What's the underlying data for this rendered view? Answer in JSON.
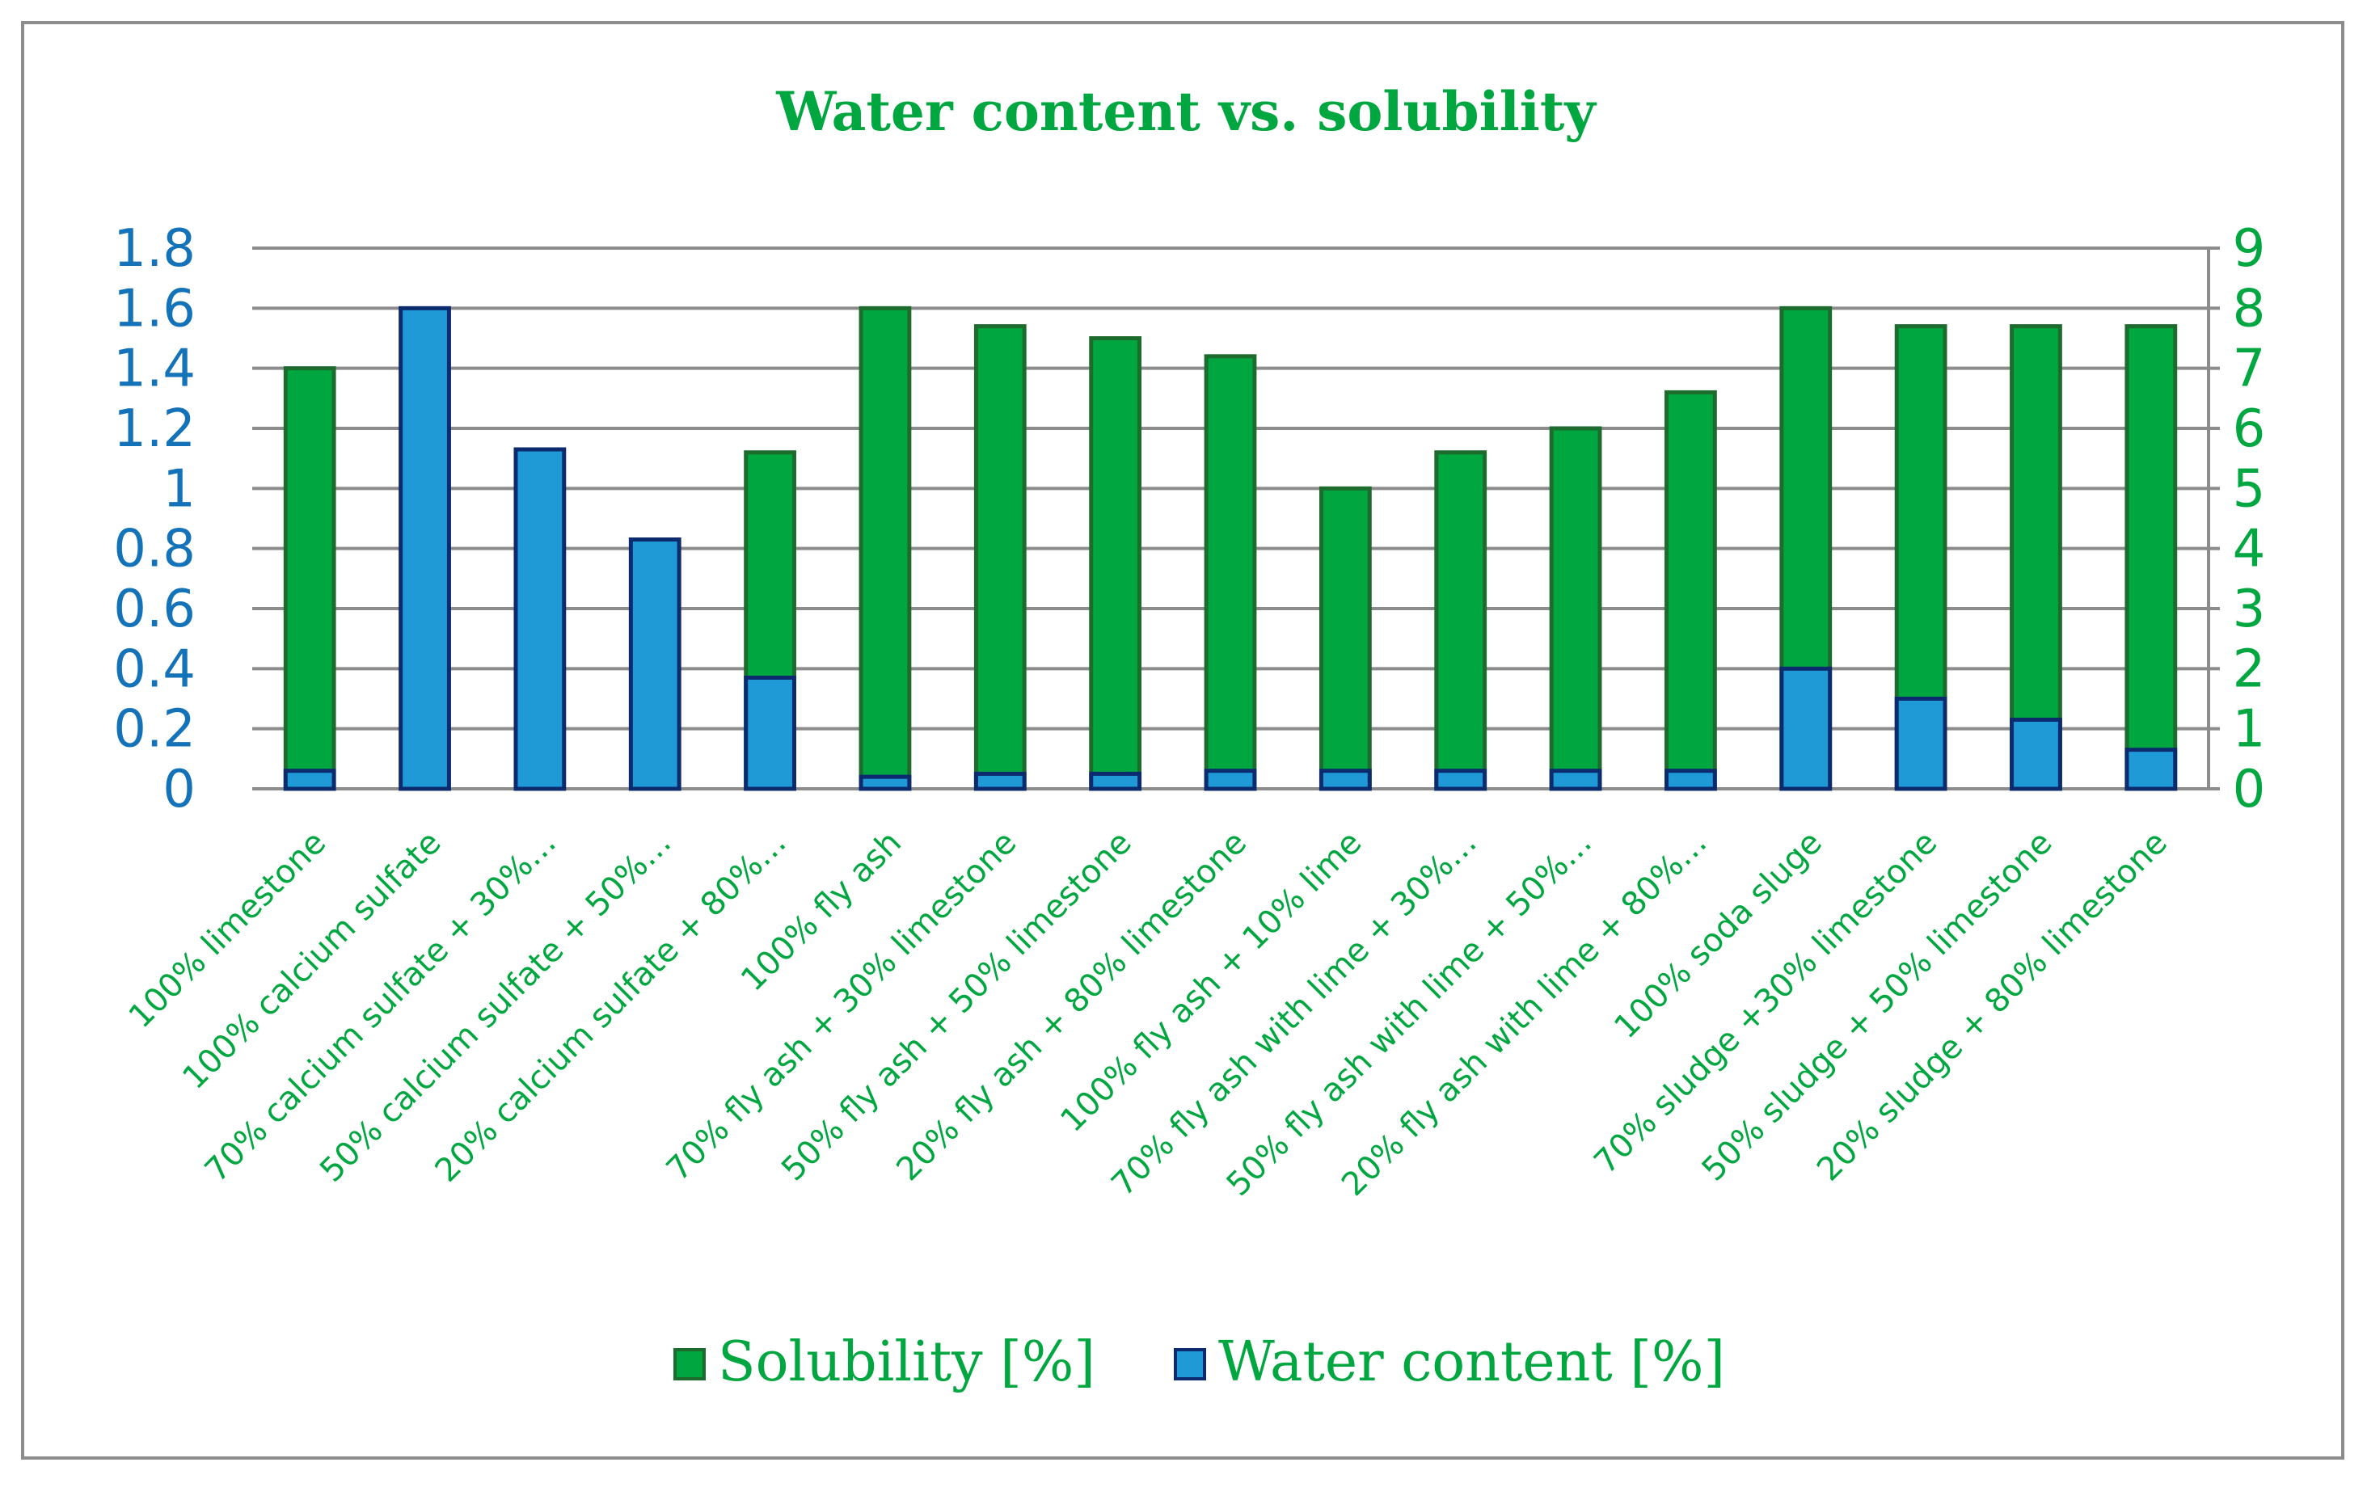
{
  "chart_data": {
    "type": "bar",
    "title": "Water content vs. solubility",
    "categories": [
      "100% limestone",
      "100% calcium sulfate",
      "70% calcium sulfate + 30%…",
      "50% calcium sulfate + 50%…",
      "20% calcium sulfate + 80%…",
      "100% fly ash",
      "70% fly ash + 30% limestone",
      "50% fly ash +  50% limestone",
      "20% fly ash +  80% limestone",
      "100% fly ash + 10% lime",
      "70% fly ash with lime  +  30%…",
      "50% fly ash with lime  +  50%…",
      "20% fly ash with lime +  80%…",
      "100% soda sluge",
      "70% sludge +30% limestone",
      "50% sludge +  50%  limestone",
      "20% sludge +  80%  limestone"
    ],
    "series": [
      {
        "name": "Solubility [%]",
        "axis": "right",
        "color": "#00a63f",
        "edge_color": "#1e6b2e",
        "values": [
          7.0,
          0.0,
          0.0,
          0.0,
          5.6,
          8.0,
          7.7,
          7.5,
          7.2,
          5.0,
          5.6,
          6.0,
          6.6,
          8.0,
          7.7,
          7.7,
          7.7
        ]
      },
      {
        "name": "Water content [%]",
        "axis": "left",
        "color": "#1f9ad6",
        "edge_color": "#0c2a6e",
        "values": [
          0.06,
          1.6,
          1.13,
          0.83,
          0.37,
          0.04,
          0.05,
          0.05,
          0.06,
          0.06,
          0.06,
          0.06,
          0.06,
          0.4,
          0.3,
          0.23,
          0.13
        ]
      }
    ],
    "left_axis": {
      "ylim": [
        0,
        1.8
      ],
      "ticks": [
        "0",
        "0.2",
        "0.4",
        "0.6",
        "0.8",
        "1",
        "1.2",
        "1.4",
        "1.6",
        "1.8"
      ],
      "color": "#1473b8"
    },
    "right_axis": {
      "ylim": [
        0,
        9
      ],
      "ticks": [
        "0",
        "1",
        "2",
        "3",
        "4",
        "5",
        "6",
        "7",
        "8",
        "9"
      ],
      "color": "#00a63f"
    },
    "title_color": "#00a63f",
    "category_label_color": "#00a63f",
    "gridlines": true,
    "legend_position": "bottom"
  }
}
